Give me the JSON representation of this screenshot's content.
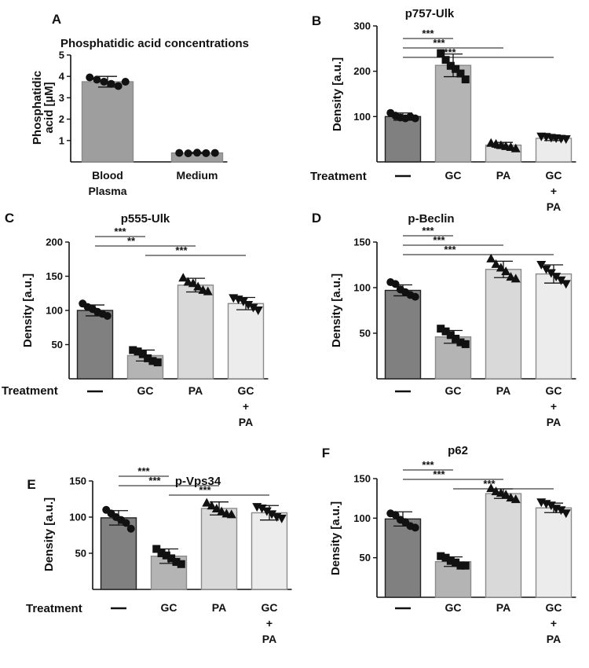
{
  "colors": {
    "dark": "#808080",
    "mid": "#b4b4b4",
    "light": "#d9d9d9",
    "lighter": "#ececec",
    "marker": "#111111"
  },
  "chart_data": [
    {
      "id": "A",
      "letter": "A",
      "type": "bar",
      "title": "Phosphatidic acid concentrations",
      "ylabel": [
        "Phosphatidic",
        "acid [µM]"
      ],
      "ylim": [
        0,
        5
      ],
      "yticks": [
        1,
        2,
        3,
        4,
        5
      ],
      "categories": [
        [
          "Blood",
          "Plasma"
        ],
        [
          "Medium"
        ]
      ],
      "values": [
        3.75,
        0.42
      ],
      "errors": [
        0.25,
        0.03
      ],
      "colors": [
        "#9e9e9e",
        "#9e9e9e"
      ],
      "markers": [
        "circle",
        "circle"
      ],
      "points": [
        [
          3.95,
          3.85,
          3.75,
          3.65,
          3.55,
          3.75
        ],
        [
          0.42,
          0.4,
          0.43,
          0.41,
          0.42
        ]
      ]
    },
    {
      "id": "B",
      "letter": "B",
      "type": "bar",
      "title": "p757-Ulk",
      "ylabel": [
        "Density [a.u.]"
      ],
      "treatment_label": "Treatment",
      "ylim": [
        0,
        300
      ],
      "yticks": [
        100,
        200,
        300
      ],
      "categories": [
        [
          "—"
        ],
        [
          "GC"
        ],
        [
          "PA"
        ],
        [
          "GC",
          "+",
          "PA"
        ]
      ],
      "values": [
        100,
        213,
        37,
        52
      ],
      "errors": [
        8,
        25,
        6,
        5
      ],
      "colors": [
        "#808080",
        "#b4b4b4",
        "#d9d9d9",
        "#ececec"
      ],
      "markers": [
        "circle",
        "square",
        "triangle",
        "invtriangle"
      ],
      "points": [
        [
          108,
          102,
          98,
          96,
          100,
          96
        ],
        [
          240,
          225,
          212,
          205,
          195,
          182
        ],
        [
          42,
          40,
          37,
          35,
          33,
          30
        ],
        [
          56,
          55,
          53,
          52,
          51,
          50
        ]
      ],
      "significance": [
        {
          "from": 0,
          "to": 1,
          "label": "***"
        },
        {
          "from": 0,
          "to": 2,
          "label": "***"
        },
        {
          "from": 0,
          "to": 3,
          "label": "***"
        }
      ]
    },
    {
      "id": "C",
      "letter": "C",
      "type": "bar",
      "title": "p555-Ulk",
      "ylabel": [
        "Density [a.u.]"
      ],
      "treatment_label": "Treatment",
      "ylim": [
        0,
        200
      ],
      "yticks": [
        50,
        100,
        150,
        200
      ],
      "categories": [
        [
          "—"
        ],
        [
          "GC"
        ],
        [
          "PA"
        ],
        [
          "GC",
          "+",
          "PA"
        ]
      ],
      "values": [
        100,
        34,
        137,
        110
      ],
      "errors": [
        8,
        8,
        10,
        9
      ],
      "colors": [
        "#808080",
        "#b4b4b4",
        "#d9d9d9",
        "#ececec"
      ],
      "markers": [
        "circle",
        "square",
        "triangle",
        "invtriangle"
      ],
      "points": [
        [
          110,
          105,
          102,
          98,
          95,
          92
        ],
        [
          42,
          40,
          36,
          30,
          26,
          24
        ],
        [
          148,
          142,
          140,
          135,
          130,
          128
        ],
        [
          118,
          116,
          113,
          108,
          104,
          100
        ]
      ],
      "significance": [
        {
          "from": 0,
          "to": 1,
          "label": "***"
        },
        {
          "from": 0,
          "to": 2,
          "label": "**"
        },
        {
          "from": 1,
          "to": 3,
          "label": "***"
        }
      ]
    },
    {
      "id": "D",
      "letter": "D",
      "type": "bar",
      "title": "p-Beclin",
      "ylabel": [
        "Density [a.u.]"
      ],
      "ylim": [
        0,
        150
      ],
      "yticks": [
        50,
        100,
        150
      ],
      "categories": [
        [
          "—"
        ],
        [
          "GC"
        ],
        [
          "PA"
        ],
        [
          "GC",
          "+",
          "PA"
        ]
      ],
      "values": [
        97,
        46,
        120,
        115
      ],
      "errors": [
        6,
        7,
        9,
        10
      ],
      "colors": [
        "#808080",
        "#b4b4b4",
        "#d9d9d9",
        "#ececec"
      ],
      "markers": [
        "circle",
        "square",
        "triangle",
        "invtriangle"
      ],
      "points": [
        [
          106,
          104,
          98,
          95,
          92,
          90
        ],
        [
          55,
          52,
          48,
          44,
          40,
          38
        ],
        [
          132,
          126,
          122,
          118,
          112,
          110
        ],
        [
          125,
          120,
          116,
          112,
          108,
          104
        ]
      ],
      "significance": [
        {
          "from": 0,
          "to": 1,
          "label": "***"
        },
        {
          "from": 0,
          "to": 2,
          "label": "***"
        },
        {
          "from": 0,
          "to": 3,
          "label": "***"
        }
      ]
    },
    {
      "id": "E",
      "letter": "E",
      "type": "bar",
      "title": "p-Vps34",
      "ylabel": [
        "Density [a.u.]"
      ],
      "treatment_label": "Treatment",
      "ylim": [
        0,
        150
      ],
      "yticks": [
        50,
        100,
        150
      ],
      "categories": [
        [
          "—"
        ],
        [
          "GC"
        ],
        [
          "PA"
        ],
        [
          "GC",
          "+",
          "PA"
        ]
      ],
      "values": [
        99,
        46,
        112,
        106
      ],
      "errors": [
        10,
        10,
        9,
        10
      ],
      "colors": [
        "#808080",
        "#b4b4b4",
        "#d9d9d9",
        "#ececec"
      ],
      "markers": [
        "circle",
        "square",
        "triangle",
        "invtriangle"
      ],
      "points": [
        [
          110,
          105,
          100,
          96,
          92,
          84
        ],
        [
          56,
          50,
          47,
          43,
          38,
          35
        ],
        [
          120,
          116,
          112,
          108,
          105,
          104
        ],
        [
          114,
          112,
          108,
          104,
          100,
          98
        ]
      ],
      "significance": [
        {
          "from": 0,
          "to": 1,
          "label": "***"
        },
        {
          "from": 0,
          "to": 2,
          "label": "***"
        },
        {
          "from": 1,
          "to": 3,
          "label": "***"
        }
      ]
    },
    {
      "id": "F",
      "letter": "F",
      "type": "bar",
      "title": "p62",
      "ylabel": [
        "Density [a.u.]"
      ],
      "ylim": [
        0,
        150
      ],
      "yticks": [
        50,
        100,
        150
      ],
      "categories": [
        [
          "—"
        ],
        [
          "GC"
        ],
        [
          "PA"
        ],
        [
          "GC",
          "+",
          "PA"
        ]
      ],
      "values": [
        99,
        45,
        131,
        113
      ],
      "errors": [
        9,
        6,
        6,
        6
      ],
      "colors": [
        "#808080",
        "#b4b4b4",
        "#d9d9d9",
        "#ececec"
      ],
      "markers": [
        "circle",
        "square",
        "triangle",
        "invtriangle"
      ],
      "points": [
        [
          106,
          104,
          98,
          95,
          90,
          88
        ],
        [
          52,
          50,
          46,
          44,
          40,
          40
        ],
        [
          138,
          134,
          132,
          130,
          126,
          124
        ],
        [
          120,
          118,
          116,
          112,
          110,
          106
        ]
      ],
      "significance": [
        {
          "from": 0,
          "to": 1,
          "label": "***"
        },
        {
          "from": 0,
          "to": 2,
          "label": "***"
        },
        {
          "from": 1,
          "to": 3,
          "label": "***"
        }
      ]
    }
  ]
}
